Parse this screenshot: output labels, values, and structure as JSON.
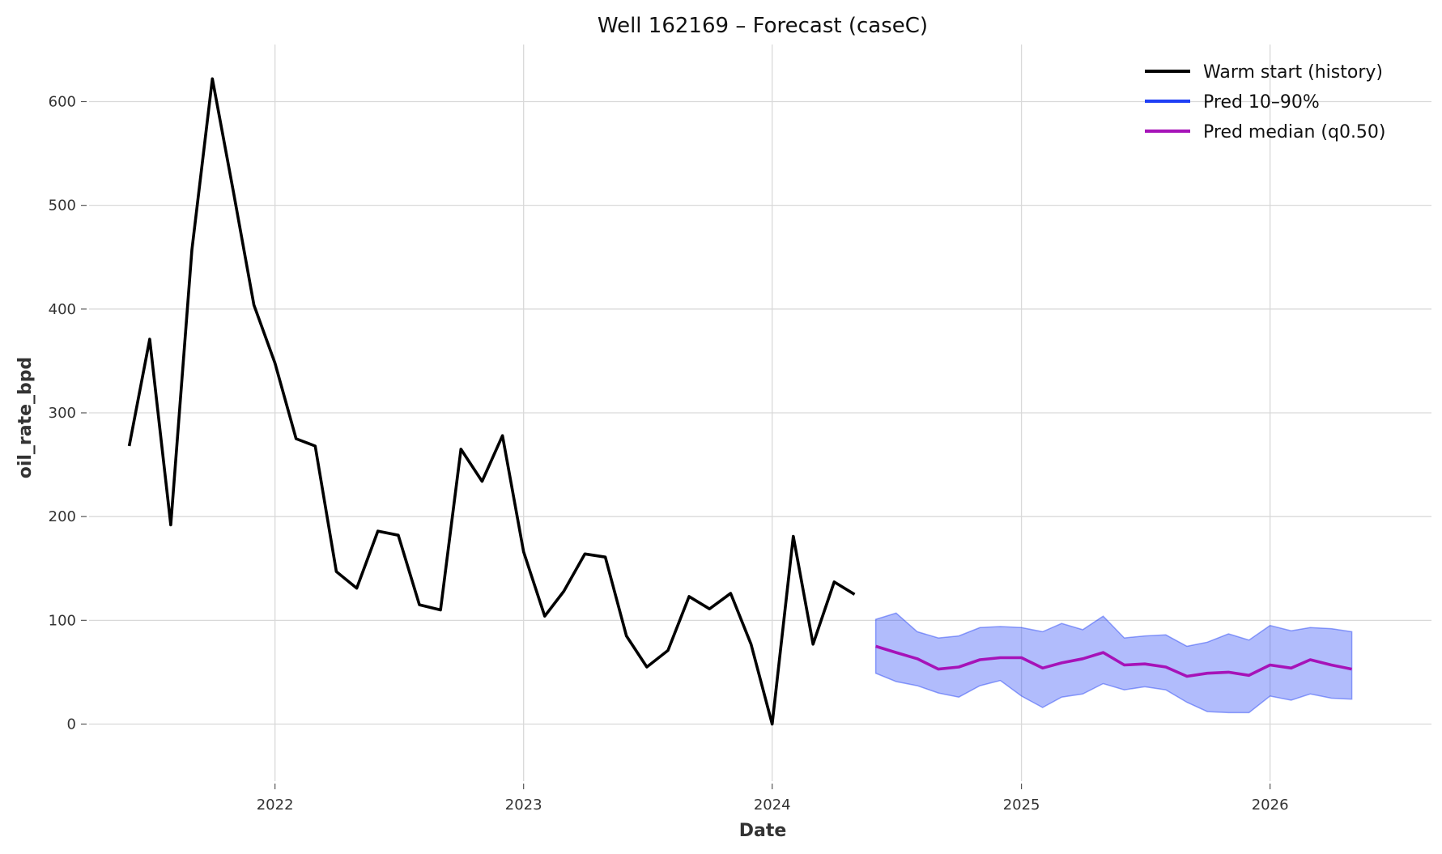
{
  "chart_data": {
    "type": "line",
    "title": "Well 162169 – Forecast (caseC)",
    "xlabel": "Date",
    "ylabel": "oil_rate_bpd",
    "x_tick_labels": [
      "2022",
      "2023",
      "2024",
      "2025",
      "2026"
    ],
    "y_ticks": [
      0,
      100,
      200,
      300,
      400,
      500,
      600
    ],
    "xlim": [
      "2021-04-03",
      "2026-08-26"
    ],
    "ylim": [
      -55,
      655
    ],
    "grid": true,
    "legend_position": "top-right",
    "legend": [
      {
        "label": "Warm start (history)",
        "color": "#000000"
      },
      {
        "label": "Pred 10–90%",
        "color": "#1f3ff5"
      },
      {
        "label": "Pred median (q0.50)",
        "color": "#a613b8"
      }
    ],
    "series": [
      {
        "name": "Warm start (history)",
        "color": "#000000",
        "x": [
          "2021-06-01",
          "2021-07-01",
          "2021-08-01",
          "2021-09-01",
          "2021-10-01",
          "2021-11-01",
          "2021-12-01",
          "2022-01-01",
          "2022-02-01",
          "2022-03-01",
          "2022-04-01",
          "2022-05-01",
          "2022-06-01",
          "2022-07-01",
          "2022-08-01",
          "2022-09-01",
          "2022-10-01",
          "2022-11-01",
          "2022-12-01",
          "2023-01-01",
          "2023-02-01",
          "2023-03-01",
          "2023-04-01",
          "2023-05-01",
          "2023-06-01",
          "2023-07-01",
          "2023-08-01",
          "2023-09-01",
          "2023-10-01",
          "2023-11-01",
          "2023-12-01",
          "2024-01-01",
          "2024-02-01",
          "2024-03-01",
          "2024-04-01",
          "2024-05-01"
        ],
        "y": [
          268,
          371,
          192,
          457,
          622,
          513,
          404,
          348,
          275,
          268,
          147,
          131,
          186,
          182,
          115,
          110,
          265,
          234,
          278,
          166,
          104,
          128,
          164,
          161,
          85,
          55,
          71,
          123,
          111,
          126,
          77,
          0,
          181,
          77,
          137,
          125
        ]
      },
      {
        "name": "Pred 10–90%",
        "color": "#1f3ff5",
        "x": [
          "2024-06-01",
          "2024-07-01",
          "2024-08-01",
          "2024-09-01",
          "2024-10-01",
          "2024-11-01",
          "2024-12-01",
          "2025-01-01",
          "2025-02-01",
          "2025-03-01",
          "2025-04-01",
          "2025-05-01",
          "2025-06-01",
          "2025-07-01",
          "2025-08-01",
          "2025-09-01",
          "2025-10-01",
          "2025-11-01",
          "2025-12-01",
          "2026-01-01",
          "2026-02-01",
          "2026-03-01",
          "2026-04-01",
          "2026-05-01"
        ],
        "upper": [
          101,
          107,
          89,
          83,
          85,
          93,
          94,
          93,
          89,
          97,
          91,
          104,
          83,
          85,
          86,
          75,
          79,
          87,
          81,
          95,
          90,
          93,
          92,
          89
        ],
        "lower": [
          49,
          41,
          37,
          30,
          26,
          37,
          42,
          27,
          16,
          26,
          29,
          39,
          33,
          36,
          33,
          21,
          12,
          11,
          11,
          27,
          23,
          29,
          25,
          24
        ]
      },
      {
        "name": "Pred median (q0.50)",
        "color": "#a613b8",
        "x": [
          "2024-06-01",
          "2024-07-01",
          "2024-08-01",
          "2024-09-01",
          "2024-10-01",
          "2024-11-01",
          "2024-12-01",
          "2025-01-01",
          "2025-02-01",
          "2025-03-01",
          "2025-04-01",
          "2025-05-01",
          "2025-06-01",
          "2025-07-01",
          "2025-08-01",
          "2025-09-01",
          "2025-10-01",
          "2025-11-01",
          "2025-12-01",
          "2026-01-01",
          "2026-02-01",
          "2026-03-01",
          "2026-04-01",
          "2026-05-01"
        ],
        "y": [
          75,
          69,
          63,
          53,
          55,
          62,
          64,
          64,
          54,
          59,
          63,
          69,
          57,
          58,
          55,
          46,
          49,
          50,
          47,
          57,
          54,
          62,
          57,
          53
        ]
      }
    ]
  }
}
